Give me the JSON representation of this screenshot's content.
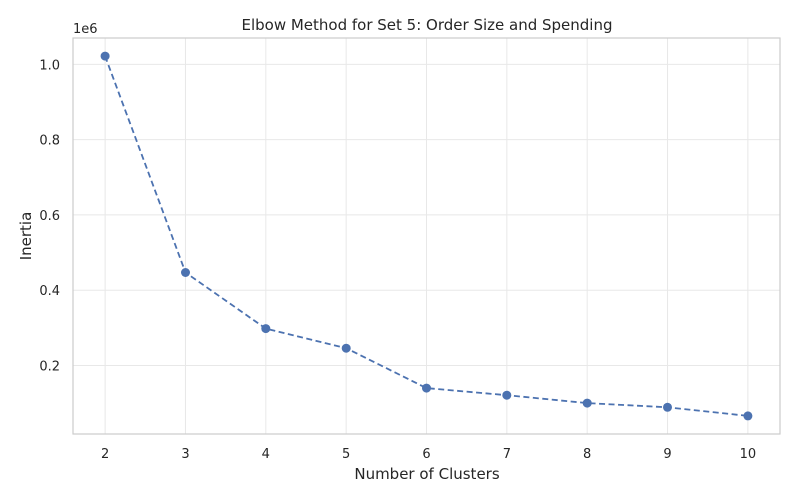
{
  "chart_data": {
    "type": "line",
    "title": "Elbow Method for Set 5: Order Size and Spending",
    "xlabel": "Number of Clusters",
    "ylabel": "Inertia",
    "y_offset_label": "1e6",
    "x": [
      2,
      3,
      4,
      5,
      6,
      7,
      8,
      9,
      10
    ],
    "series": [
      {
        "values": [
          1022000,
          447000,
          298000,
          246000,
          140000,
          121000,
          100000,
          89000,
          66000
        ]
      }
    ],
    "xticks": [
      2,
      3,
      4,
      5,
      6,
      7,
      8,
      9,
      10
    ],
    "xtick_labels": [
      "2",
      "3",
      "4",
      "5",
      "6",
      "7",
      "8",
      "9",
      "10"
    ],
    "yticks": [
      200000,
      400000,
      600000,
      800000,
      1000000
    ],
    "ytick_labels": [
      "0.2",
      "0.4",
      "0.6",
      "0.8",
      "1.0"
    ],
    "xlim": [
      1.6,
      10.4
    ],
    "ylim": [
      18000,
      1070000
    ],
    "grid": true,
    "line_style": "dashed",
    "marker": "circle",
    "color": "#4c72b0"
  }
}
